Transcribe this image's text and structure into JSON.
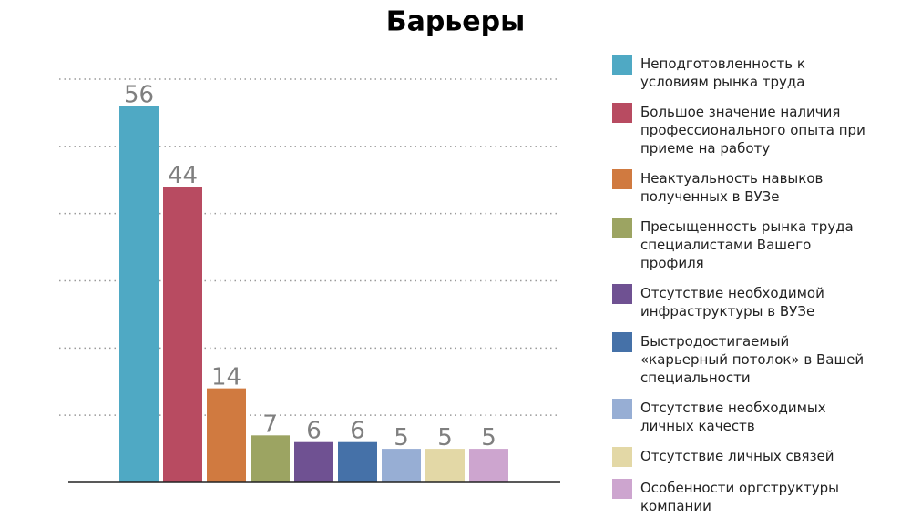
{
  "chart_data": {
    "type": "bar",
    "title": "Барьеры",
    "ylim": [
      0,
      60
    ],
    "yticks": [
      0,
      10,
      20,
      30,
      40,
      50,
      60
    ],
    "grid": true,
    "series": [
      {
        "name": "Неподготовленность к условиям рынка труда",
        "color": "#4fa9c4",
        "values": [
          56
        ]
      },
      {
        "name": "Большое значение наличия профессионального опыта при приеме на работу",
        "color": "#b84b61",
        "values": [
          44
        ]
      },
      {
        "name": "Неактуальность навыков полученных в ВУЗе",
        "color": "#d07a40",
        "values": [
          14
        ]
      },
      {
        "name": "Пресыщенность рынка труда специалистами Вашего профиля",
        "color": "#9ca462",
        "values": [
          7
        ]
      },
      {
        "name": "Отсутствие необходимой инфраструктуры в ВУЗе",
        "color": "#6f5192",
        "values": [
          6
        ]
      },
      {
        "name": "Быстродостигаемый «карьерный потолок» в Вашей специальности",
        "color": "#4571a8",
        "values": [
          6
        ]
      },
      {
        "name": "Отсутствие необходимых личных качеств",
        "color": "#97aed4",
        "values": [
          5
        ]
      },
      {
        "name": "Отсутствие личных связей",
        "color": "#e3d8a6",
        "values": [
          5
        ]
      },
      {
        "name": "Особенности оргструктуры компании",
        "color": "#cda5cf",
        "values": [
          5
        ]
      }
    ]
  }
}
